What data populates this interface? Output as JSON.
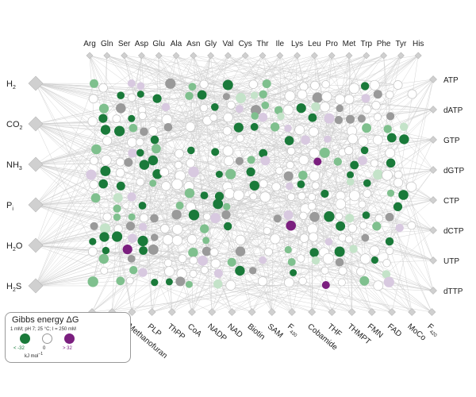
{
  "colors": {
    "favorable": "#1a7a3a",
    "favorable_light": "#7fc08e",
    "neutral": "#ffffff",
    "unfavorable": "#7b1f7f",
    "unfavorable_light": "#d8c9e0",
    "na": "#9a9a9a",
    "edge": "#cfcfcf",
    "diamond": "#d0d0d0"
  },
  "amino_acids": [
    "Arg",
    "Gln",
    "Ser",
    "Asp",
    "Glu",
    "Ala",
    "Asn",
    "Gly",
    "Val",
    "Cys",
    "Thr",
    "Ile",
    "Lys",
    "Leu",
    "Pro",
    "Met",
    "Trp",
    "Phe",
    "Tyr",
    "His"
  ],
  "inorganics": [
    {
      "base": "H",
      "sub": "2"
    },
    {
      "base": "CO",
      "sub": "2"
    },
    {
      "base": "NH",
      "sub": "3"
    },
    {
      "base": "P",
      "sub": "i"
    },
    {
      "base": "H",
      "sub": "2",
      "tail": "O"
    },
    {
      "base": "H",
      "sub": "2",
      "tail": "S"
    }
  ],
  "nucleotides": [
    "ATP",
    "dATP",
    "GTP",
    "dGTP",
    "CTP",
    "dCTP",
    "UTP",
    "dTTP"
  ],
  "cofactors": [
    {
      "base": "CoB"
    },
    {
      "base": "CoM"
    },
    {
      "base": "Methanofuran"
    },
    {
      "base": "PLP"
    },
    {
      "base": "ThPP"
    },
    {
      "base": "CoA"
    },
    {
      "base": "NADP"
    },
    {
      "base": "NAD"
    },
    {
      "base": "Biotin"
    },
    {
      "base": "SAM"
    },
    {
      "base": "F",
      "sub": "430"
    },
    {
      "base": "Cobamide"
    },
    {
      "base": "THF"
    },
    {
      "base": "THMPT"
    },
    {
      "base": "FMN"
    },
    {
      "base": "FAD"
    },
    {
      "base": "MoCo"
    },
    {
      "base": "F",
      "sub": "420"
    }
  ],
  "legend": {
    "title": "Gibbs energy ΔG",
    "conditions": "1 mM; pH 7; 25 °C; I = 250 mM",
    "ticks": [
      "< -32",
      "0",
      "> 32"
    ],
    "unit": "kJ mol",
    "unit_exp": "−1"
  }
}
